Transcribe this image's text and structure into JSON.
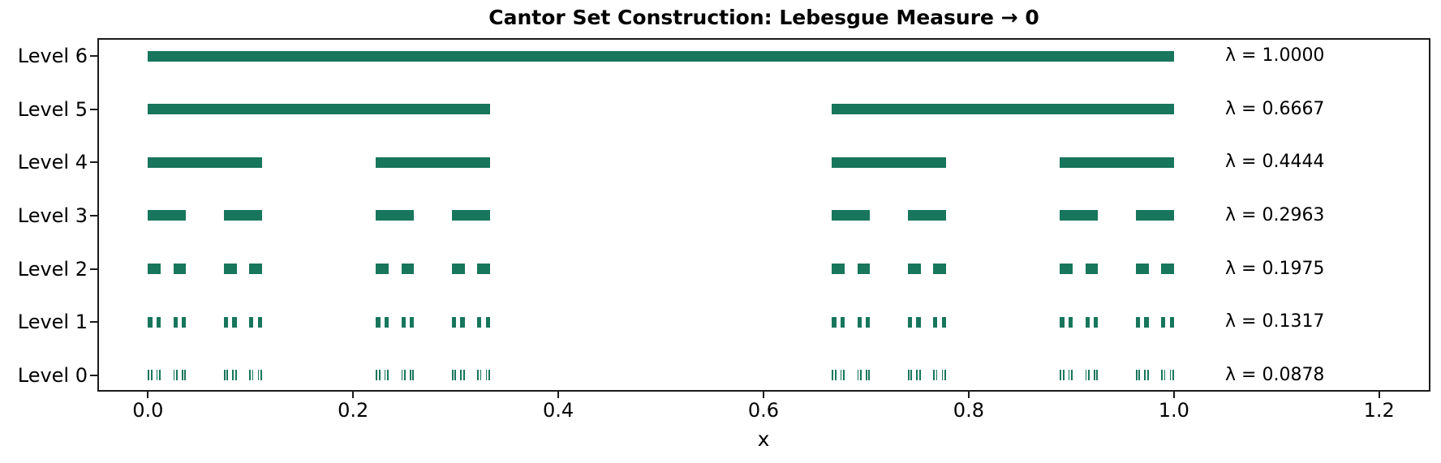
{
  "title": "Cantor Set Construction: Lebesgue Measure → 0",
  "chart_data": {
    "type": "bar",
    "title": "Cantor Set Construction: Lebesgue Measure → 0",
    "xlabel": "x",
    "ylabel": "",
    "grid": false,
    "legend": "none",
    "xlim": [
      -0.049,
      1.25
    ],
    "x_ticks": [
      0.0,
      0.2,
      0.4,
      0.6,
      0.8,
      1.0,
      1.2
    ],
    "x_tick_labels": [
      "0.0",
      "0.2",
      "0.4",
      "0.6",
      "0.8",
      "1.0",
      "1.2"
    ],
    "bar_color": "#17765c",
    "annotation_x": 1.05,
    "rows": [
      {
        "label": "Level 6",
        "iteration": 0,
        "measure": 1.0,
        "measure_label": "λ = 1.0000",
        "interval_count": 1,
        "interval_length": 1.0,
        "denominator": 1,
        "interval_starts": [
          0
        ]
      },
      {
        "label": "Level 5",
        "iteration": 1,
        "measure": 0.6667,
        "measure_label": "λ = 0.6667",
        "interval_count": 2,
        "interval_length": 0.333333,
        "denominator": 3,
        "interval_starts": [
          0,
          2
        ]
      },
      {
        "label": "Level 4",
        "iteration": 2,
        "measure": 0.4444,
        "measure_label": "λ = 0.4444",
        "interval_count": 4,
        "interval_length": 0.111111,
        "denominator": 9,
        "interval_starts": [
          0,
          2,
          6,
          8
        ]
      },
      {
        "label": "Level 3",
        "iteration": 3,
        "measure": 0.2963,
        "measure_label": "λ = 0.2963",
        "interval_count": 8,
        "interval_length": 0.037037,
        "denominator": 27,
        "interval_starts": [
          0,
          2,
          6,
          8,
          18,
          20,
          24,
          26
        ]
      },
      {
        "label": "Level 2",
        "iteration": 4,
        "measure": 0.1975,
        "measure_label": "λ = 0.1975",
        "interval_count": 16,
        "interval_length": 0.012346,
        "denominator": 81,
        "interval_starts": [
          0,
          2,
          6,
          8,
          18,
          20,
          24,
          26,
          54,
          56,
          60,
          62,
          72,
          74,
          78,
          80
        ]
      },
      {
        "label": "Level 1",
        "iteration": 5,
        "measure": 0.1317,
        "measure_label": "λ = 0.1317",
        "interval_count": 32,
        "interval_length": 0.004115,
        "denominator": 243,
        "interval_starts": [
          0,
          2,
          6,
          8,
          18,
          20,
          24,
          26,
          54,
          56,
          60,
          62,
          72,
          74,
          78,
          80,
          162,
          164,
          168,
          170,
          180,
          182,
          186,
          188,
          216,
          218,
          222,
          224,
          234,
          236,
          240,
          242
        ]
      },
      {
        "label": "Level 0",
        "iteration": 6,
        "measure": 0.0878,
        "measure_label": "λ = 0.0878",
        "interval_count": 64,
        "interval_length": 0.001372,
        "denominator": 729,
        "interval_starts": [
          0,
          2,
          6,
          8,
          18,
          20,
          24,
          26,
          54,
          56,
          60,
          62,
          72,
          74,
          78,
          80,
          162,
          164,
          168,
          170,
          180,
          182,
          186,
          188,
          216,
          218,
          222,
          224,
          234,
          236,
          240,
          242,
          486,
          488,
          492,
          494,
          504,
          506,
          510,
          512,
          540,
          542,
          546,
          548,
          558,
          560,
          564,
          566,
          648,
          650,
          654,
          656,
          666,
          668,
          672,
          674,
          702,
          704,
          708,
          710,
          720,
          722,
          726,
          728
        ]
      }
    ]
  }
}
